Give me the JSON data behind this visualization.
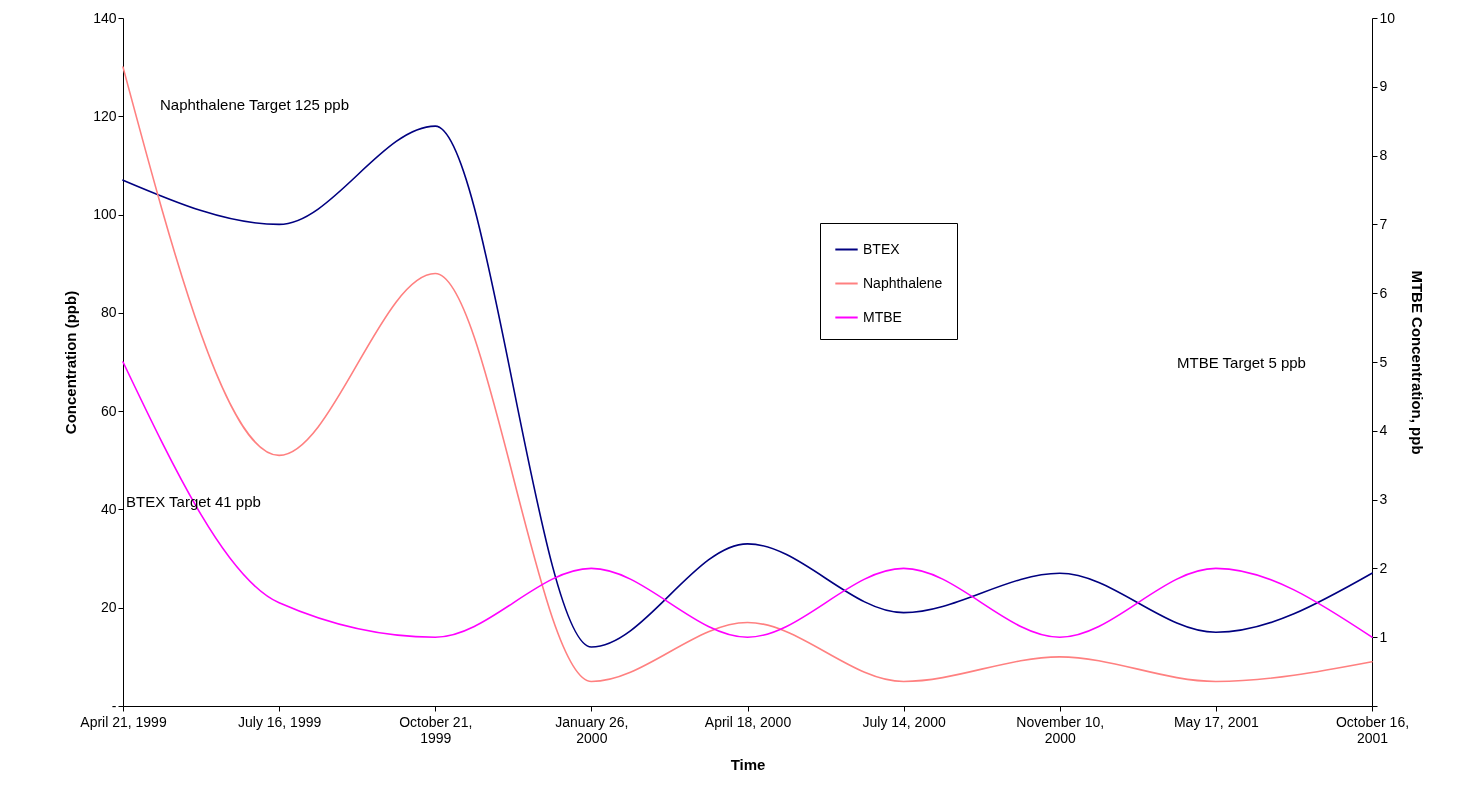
{
  "chart_data": {
    "type": "line",
    "xlabel": "Time",
    "ylabel": "Concentration (ppb)",
    "y2label": "MTBE Concentration, ppb",
    "categories": [
      "April 21, 1999",
      "July 16, 1999",
      "October 21, 1999",
      "January 26, 2000",
      "April 18, 2000",
      "July 14, 2000",
      "November 10, 2000",
      "May 17, 2001",
      "October 16, 2001"
    ],
    "series": [
      {
        "name": "BTEX",
        "color": "#000080",
        "values": [
          107,
          98,
          118,
          12,
          33,
          19,
          27,
          15,
          27
        ]
      },
      {
        "name": "Naphthalene",
        "color": "#ff8080",
        "values": [
          130,
          51,
          88,
          5,
          17,
          5,
          10,
          5,
          9
        ]
      },
      {
        "name": "MTBE",
        "color": "#ff00ff",
        "axis": "y2",
        "values": [
          5,
          1.5,
          1,
          2,
          1,
          2,
          1,
          2,
          1
        ]
      }
    ],
    "ylim": [
      0,
      140
    ],
    "yticks": [
      {
        "value": 0,
        "label": "-"
      },
      20,
      40,
      60,
      80,
      100,
      120,
      140
    ],
    "y2lim": [
      0,
      10
    ],
    "y2ticks": [
      {
        "value": 0,
        "label": null
      },
      1,
      2,
      3,
      4,
      5,
      6,
      7,
      8,
      9,
      10
    ],
    "annotations": [
      "Naphthalene Target 125 ppb",
      "BTEX Target 41 ppb",
      "MTBE Target 5 ppb"
    ],
    "grid": false,
    "legend": "top",
    "marker": "none",
    "line_style": "solid"
  }
}
